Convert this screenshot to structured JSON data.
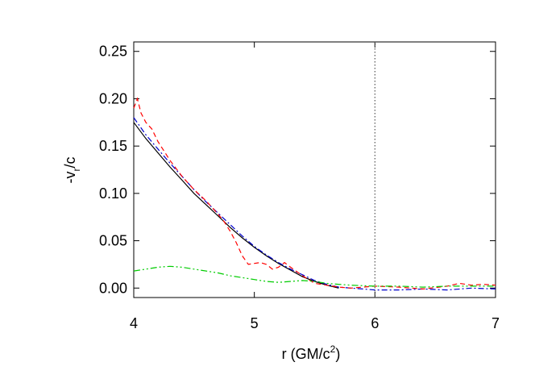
{
  "chart_data": {
    "type": "line",
    "xlabel": {
      "main": "r (GM/c",
      "sup": "2",
      "close": ")"
    },
    "ylabel": {
      "pre": "-v",
      "sub": "r",
      "post": "/c"
    },
    "xlim": [
      4,
      7
    ],
    "ylim": [
      -0.01,
      0.26
    ],
    "x_ticks": [
      4,
      5,
      6,
      7
    ],
    "x_tick_labels": [
      "4",
      "5",
      "6",
      "7"
    ],
    "y_ticks": [
      0.0,
      0.05,
      0.1,
      0.15,
      0.2,
      0.25
    ],
    "y_tick_labels": [
      "0.00",
      "0.05",
      "0.10",
      "0.15",
      "0.20",
      "0.25"
    ],
    "grid": false,
    "vline": {
      "x": 6,
      "style": "dotted",
      "color": "#555555"
    },
    "series": [
      {
        "color": "#000000",
        "dash": "",
        "x": [
          4.0,
          4.1,
          4.2,
          4.3,
          4.4,
          4.5,
          4.6,
          4.7,
          4.8,
          4.9,
          5.0,
          5.1,
          5.2,
          5.3,
          5.4,
          5.5,
          5.6,
          5.7
        ],
        "y": [
          0.175,
          0.158,
          0.143,
          0.128,
          0.114,
          0.1,
          0.088,
          0.076,
          0.064,
          0.053,
          0.043,
          0.034,
          0.026,
          0.019,
          0.012,
          0.007,
          0.003,
          0.0
        ]
      },
      {
        "color": "#0000cc",
        "dash": "7 3 2 3",
        "x": [
          4.0,
          4.1,
          4.2,
          4.3,
          4.4,
          4.5,
          4.6,
          4.7,
          4.8,
          4.9,
          5.0,
          5.1,
          5.2,
          5.3,
          5.4,
          5.5,
          5.6,
          5.7,
          5.8,
          5.9,
          6.0,
          6.2,
          6.4,
          6.6,
          6.8,
          7.0
        ],
        "y": [
          0.18,
          0.162,
          0.147,
          0.132,
          0.118,
          0.104,
          0.091,
          0.079,
          0.067,
          0.055,
          0.044,
          0.035,
          0.027,
          0.02,
          0.014,
          0.008,
          0.004,
          0.001,
          0.0,
          -0.001,
          -0.002,
          -0.002,
          -0.001,
          -0.002,
          0.0,
          -0.001
        ]
      },
      {
        "color": "#ff0000",
        "dash": "6 4",
        "x": [
          4.0,
          4.03,
          4.06,
          4.1,
          4.15,
          4.2,
          4.3,
          4.4,
          4.5,
          4.6,
          4.7,
          4.75,
          4.8,
          4.85,
          4.9,
          4.95,
          5.0,
          5.05,
          5.1,
          5.15,
          5.2,
          5.25,
          5.3,
          5.4,
          5.5,
          5.6,
          5.7,
          5.8,
          6.0,
          6.2,
          6.4,
          6.6,
          6.7,
          6.8,
          6.9,
          7.0
        ],
        "y": [
          0.19,
          0.2,
          0.185,
          0.175,
          0.168,
          0.155,
          0.135,
          0.118,
          0.104,
          0.092,
          0.078,
          0.07,
          0.06,
          0.048,
          0.034,
          0.025,
          0.026,
          0.027,
          0.025,
          0.02,
          0.022,
          0.027,
          0.022,
          0.013,
          0.005,
          0.003,
          0.001,
          0.0,
          0.002,
          0.001,
          -0.001,
          0.002,
          0.005,
          0.003,
          0.004,
          0.003
        ]
      },
      {
        "color": "#00cc00",
        "dash": "8 3 2 3 2 3",
        "x": [
          4.0,
          4.1,
          4.2,
          4.3,
          4.4,
          4.5,
          4.6,
          4.7,
          4.8,
          4.9,
          5.0,
          5.1,
          5.2,
          5.3,
          5.4,
          5.5,
          5.6,
          5.7,
          5.8,
          6.0,
          6.2,
          6.4,
          6.6,
          6.8,
          7.0
        ],
        "y": [
          0.018,
          0.02,
          0.022,
          0.023,
          0.022,
          0.02,
          0.018,
          0.016,
          0.013,
          0.011,
          0.009,
          0.007,
          0.006,
          0.007,
          0.008,
          0.007,
          0.005,
          0.004,
          0.003,
          0.002,
          0.002,
          0.001,
          0.002,
          0.002,
          0.002
        ]
      }
    ]
  }
}
